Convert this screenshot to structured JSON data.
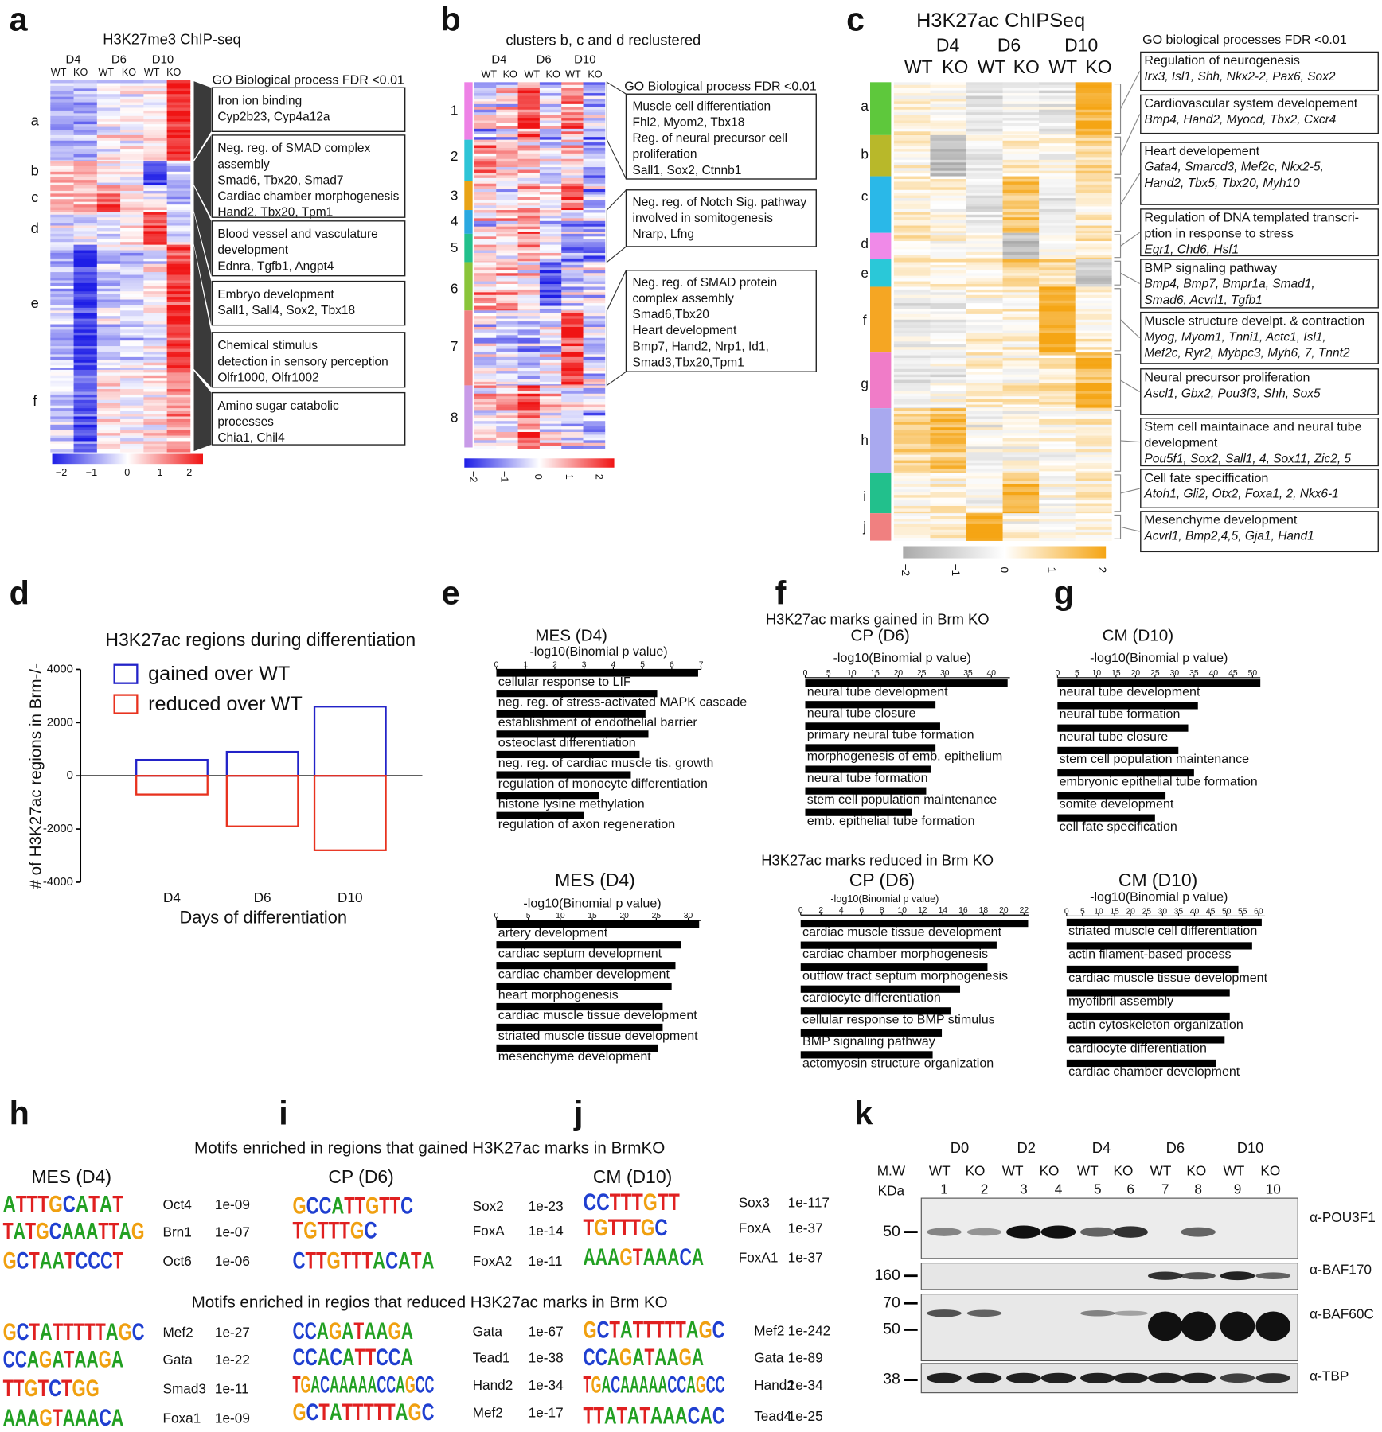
{
  "labels": [
    "a",
    "b",
    "c",
    "d",
    "e",
    "f",
    "g",
    "h",
    "i",
    "j",
    "k"
  ],
  "heatmap_a": {
    "title": "H3K27me3 ChIP-seq",
    "days": [
      "D4",
      "D6",
      "D10"
    ],
    "genotypes": [
      "WT",
      "KO",
      "WT",
      "KO",
      "WT",
      "KO"
    ],
    "clusters": [
      "a",
      "b",
      "c",
      "d",
      "e",
      "f"
    ],
    "go_header": "GO Biological process FDR <0.01",
    "go_boxes": [
      [
        "Iron ion binding",
        "Cyp2b23, Cyp4a12a"
      ],
      [
        "Neg. reg. of SMAD complex",
        "assembly",
        "Smad6, Tbx20, Smad7",
        "Cardiac chamber morphogenesis",
        "Hand2, Tbx20, Tpm1"
      ],
      [
        "Blood vessel  and vasculature",
        "development",
        "Ednra, Tgfb1, Angpt4"
      ],
      [
        "Embryo development",
        "Sall1, Sall4, Sox2, Tbx18"
      ],
      [
        "Chemical stimulus",
        "detection in sensory perception",
        "Olfr1000, Olfr1002"
      ],
      [
        "Amino sugar catabolic",
        "processes",
        "Chia1, Chil4"
      ]
    ],
    "colorbar": [
      "−2",
      "−1",
      "0",
      "1",
      "2"
    ]
  },
  "heatmap_b": {
    "title": "clusters b, c and d reclustered",
    "days": [
      "D4",
      "D6",
      "D10"
    ],
    "genotypes": [
      "WT",
      "KO",
      "WT",
      "KO",
      "WT",
      "KO"
    ],
    "clusters": [
      "1",
      "2",
      "3",
      "4",
      "5",
      "6",
      "7",
      "8"
    ],
    "go_header": "GO Biological process FDR <0.01",
    "go_boxes": [
      [
        "Muscle cell differentiation",
        "Fhl2, Myom2, Tbx18",
        "Reg. of neural precursor cell",
        "proliferation",
        "Sall1, Sox2, Ctnnb1"
      ],
      [
        "Neg. reg. of Notch Sig. pathway",
        "involved in somitogenesis",
        "Nrarp, Lfng"
      ],
      [
        "Neg. reg. of SMAD protein",
        "complex assembly",
        "Smad6,Tbx20",
        "Heart development",
        "Bmp7, Hand2, Nrp1, Id1,",
        "Smad3,Tbx20,Tpm1"
      ]
    ],
    "colorbar": [
      "−2",
      "−1",
      "0",
      "1",
      "2"
    ]
  },
  "heatmap_c": {
    "title": "H3K27ac ChIPSeq",
    "days": [
      "D4",
      "D6",
      "D10"
    ],
    "genotypes": [
      "WT",
      "KO",
      "WT",
      "KO",
      "WT",
      "KO"
    ],
    "clusters": [
      "a",
      "b",
      "c",
      "d",
      "e",
      "f",
      "g",
      "h",
      "i",
      "j"
    ],
    "go_header": "GO biological processes FDR <0.01",
    "go_boxes": [
      {
        "title": [
          "Regulation of neurogenesis"
        ],
        "genes": [
          "Irx3, Isl1, Shh, Nkx2-2, Pax6, Sox2"
        ]
      },
      {
        "title": [
          "Cardiovascular system developement"
        ],
        "genes": [
          "Bmp4,  Hand2, Myocd, Tbx2, Cxcr4"
        ]
      },
      {
        "title": [
          "Heart developement"
        ],
        "genes": [
          "Gata4, Smarcd3, Mef2c, Nkx2-5,",
          "Hand2, Tbx5, Tbx20, Myh10"
        ]
      },
      {
        "title": [
          "Regulation of DNA templated transcri-",
          "ption in response to stress"
        ],
        "genes": [
          "Egr1, Chd6, Hsf1"
        ]
      },
      {
        "title": [
          "BMP signaling pathway"
        ],
        "genes": [
          "Bmp4, Bmp7,  Bmpr1a, Smad1,",
          "Smad6, Acvrl1, Tgfb1"
        ]
      },
      {
        "title": [
          "Muscle structure develpt. & contraction"
        ],
        "genes": [
          "Myog, Myom1, Tnni1, Actc1, Isl1,",
          "Mef2c,  Ryr2, Mybpc3, Myh6, 7, Tnnt2"
        ]
      },
      {
        "title": [
          "Neural precursor proliferation"
        ],
        "genes": [
          "Ascl1, Gbx2, Pou3f3, Shh, Sox5"
        ]
      },
      {
        "title": [
          "Stem cell maintainace and neural tube",
          "development"
        ],
        "genes": [
          "Pou5f1, Sox2, Sall1, 4, Sox11, Zic2, 5"
        ]
      },
      {
        "title": [
          "Cell fate speciffication"
        ],
        "genes": [
          "Atoh1, Gli2, Otx2, Foxa1, 2, Nkx6-1"
        ]
      },
      {
        "title": [
          "Mesenchyme development"
        ],
        "genes": [
          "Acvrl1, Bmp2,4,5, Gja1, Hand1"
        ]
      }
    ],
    "colorbar": [
      "−2",
      "−1",
      "0",
      "1",
      "2"
    ]
  },
  "go_headers": {
    "gained": "H3K27ac marks gained in Brm KO",
    "reduced": "H3K27ac marks reduced in Brm KO"
  },
  "chart_data": [
    {
      "type": "bar",
      "title": "H3K27ac regions during differentiation",
      "categories": [
        "D4",
        "D6",
        "D10"
      ],
      "series": [
        {
          "name": "gained over WT",
          "color": "#2323c8",
          "values": [
            600,
            900,
            2600
          ]
        },
        {
          "name": "reduced over WT",
          "color": "#e8321e",
          "values": [
            -700,
            -1900,
            -2800
          ]
        }
      ],
      "ylim": [
        -4000,
        4000
      ],
      "yticks": [
        -4000,
        -2000,
        0,
        2000,
        4000
      ],
      "xlabel": "Days of differentiation",
      "ylabel": "# of H3K27ac regions in Brm-/-",
      "legend": "upper left"
    },
    {
      "type": "barh",
      "title": "MES (D4)",
      "xlabel": "-log10(Binomial p value)",
      "color": "#000000",
      "xlim": [
        0,
        7
      ],
      "xticks": [
        0,
        1,
        2,
        3,
        4,
        5,
        6,
        7
      ],
      "categories": [
        "cellular response to LIF",
        "neg. reg. of stress-activated MAPK cascade",
        "establishment of endothelial barrier",
        "osteoclast differentiation",
        "neg. reg. of cardiac muscle tis. growth",
        "regulation of monocyte differentiation",
        "histone lysine methylation",
        "regulation of axon regeneration"
      ],
      "values": [
        6.9,
        5.5,
        5.1,
        5.2,
        4.9,
        4.6,
        3.5,
        3.0
      ]
    },
    {
      "type": "barh",
      "title": "CP (D6)",
      "xlabel": "-log10(Binomial p value)",
      "color": "#000000",
      "xlim": [
        0,
        44
      ],
      "xticks": [
        0,
        5,
        10,
        15,
        20,
        25,
        30,
        35,
        40
      ],
      "categories": [
        "neural tube development",
        "neural tube closure",
        "primary neural tube formation",
        "morphogenesis of emb. epithelium",
        "neural tube formation",
        "stem cell population maintenance",
        "emb. epithelial tube formation"
      ],
      "values": [
        43.5,
        28,
        29,
        28,
        27,
        26,
        23
      ]
    },
    {
      "type": "barh",
      "title": "CM (D10)",
      "xlabel": "-log10(Binomial p value)",
      "color": "#000000",
      "xlim": [
        0,
        52
      ],
      "xticks": [
        0,
        5,
        10,
        15,
        20,
        25,
        30,
        35,
        40,
        45,
        50
      ],
      "categories": [
        "neural tube development",
        "neural tube formation",
        "neural tube closure",
        "stem cell population maintenance",
        "embryonic epithelial tube formation",
        "somite development",
        "cell fate specification"
      ],
      "values": [
        52,
        36,
        33.5,
        31,
        35,
        27.7,
        25
      ]
    },
    {
      "type": "barh",
      "title": "MES (D4)",
      "xlabel": "-log10(Binomial p value)",
      "color": "#000000",
      "xlim": [
        0,
        32
      ],
      "xticks": [
        0,
        5,
        10,
        15,
        20,
        25,
        30
      ],
      "categories": [
        "artery development",
        "cardiac septum development",
        "cardiac chamber development",
        "heart morphogenesis",
        "cardiac muscle tissue development",
        "striated muscle tissue development",
        "mesenchyme development"
      ],
      "values": [
        31.7,
        28.9,
        28,
        27.4,
        26,
        26,
        25.3
      ]
    },
    {
      "type": "barh",
      "title": "CP (D6)",
      "xlabel": "-log10(Binomial p value)",
      "color": "#000000",
      "xlim": [
        0,
        22.5
      ],
      "xticks": [
        0,
        2,
        4,
        6,
        8,
        10,
        12,
        14,
        16,
        18,
        20,
        22
      ],
      "categories": [
        "cardiac muscle tissue development",
        "cardiac chamber morphogenesis",
        "outflow tract septum morphogenesis",
        "cardiocyte differentiation",
        "cellular response to BMP stimulus",
        "BMP signaling pathway",
        "actomyosin structure organization"
      ],
      "values": [
        22.4,
        19.3,
        18.4,
        15.7,
        14.8,
        13.9,
        13
      ]
    },
    {
      "type": "barh",
      "title": "CM (D10)",
      "xlabel": "-log10(Binomial p value)",
      "color": "#000000",
      "xlim": [
        0,
        62
      ],
      "xticks": [
        0,
        5,
        10,
        15,
        20,
        25,
        30,
        35,
        40,
        45,
        50,
        55,
        60
      ],
      "categories": [
        "striated muscle cell differentiation",
        "actin filament-based process",
        "cardiac muscle tissue development",
        "myofibril assembly",
        "actin cytoskeleton organization",
        "cardiocyte differentiation",
        "cardiac chamber development"
      ],
      "values": [
        61,
        58,
        53.7,
        51,
        51,
        49.4,
        46.6
      ]
    }
  ],
  "motifs": {
    "gained_header": "Motifs enriched in regions that gained H3K27ac marks in BrmKO",
    "reduced_header": "Motifs enriched in regios that reduced H3K27ac marks in Brm KO",
    "stages": [
      "MES (D4)",
      "CP (D6)",
      "CM (D10)"
    ],
    "gained": [
      [
        {
          "logo": "ATTTGCATAT",
          "name": "Oct4",
          "p": "1e-09"
        },
        {
          "logo": "TATGCAAATTAG",
          "name": "Brn1",
          "p": "1e-07"
        },
        {
          "logo": "GCTAATCCCT",
          "name": "Oct6",
          "p": "1e-06"
        }
      ],
      [
        {
          "logo": "GCCATTGTTC",
          "name": "Sox2",
          "p": "1e-23"
        },
        {
          "logo": "TGTTTGC",
          "name": "FoxA",
          "p": "1e-14"
        },
        {
          "logo": "CTTGTTTACATA",
          "name": "FoxA2",
          "p": "1e-11"
        }
      ],
      [
        {
          "logo": "CCTTTGTT",
          "name": "Sox3",
          "p": "1e-117"
        },
        {
          "logo": "TGTTTGC",
          "name": "FoxA",
          "p": "1e-37"
        },
        {
          "logo": "AAAGTAAACA",
          "name": "FoxA1",
          "p": "1e-37"
        }
      ]
    ],
    "reduced": [
      [
        {
          "logo": "GCTATTTTTAGC",
          "name": "Mef2",
          "p": "1e-27"
        },
        {
          "logo": "CCAGATAAGA",
          "name": "Gata",
          "p": "1e-22"
        },
        {
          "logo": "TTGTCTGG",
          "name": "Smad3",
          "p": "1e-11"
        },
        {
          "logo": "AAAGTAAACA",
          "name": "Foxa1",
          "p": "1e-09"
        }
      ],
      [
        {
          "logo": "CCAGATAAGA",
          "name": "Gata",
          "p": "1e-67"
        },
        {
          "logo": "CCACATTCCA",
          "name": "Tead1",
          "p": "1e-38"
        },
        {
          "logo": "TGACAAAAACCAGCC",
          "name": "Hand2",
          "p": "1e-34"
        },
        {
          "logo": "GCTATTTTTAGC",
          "name": "Mef2",
          "p": "1e-17"
        }
      ],
      [
        {
          "logo": "GCTATTTTTAGC",
          "name": "Mef2",
          "p": "1e-242"
        },
        {
          "logo": "CCAGATAAGA",
          "name": "Gata",
          "p": "1e-89"
        },
        {
          "logo": "TGACAAAAACCAGCC",
          "name": "Hand2",
          "p": "1e-34"
        },
        {
          "logo": "TTATATAAACAC",
          "name": "Tead4",
          "p": "1e-25"
        }
      ]
    ]
  },
  "western": {
    "days": [
      "D0",
      "D2",
      "D4",
      "D6",
      "D10"
    ],
    "mw_header": [
      "M.W",
      "KDa"
    ],
    "genotypes": [
      "WT",
      "KO",
      "WT",
      "KO",
      "WT",
      "KO",
      "WT",
      "KO",
      "WT",
      "KO"
    ],
    "lanes": [
      1,
      2,
      3,
      4,
      5,
      6,
      7,
      8,
      9,
      10
    ],
    "markers": [
      50,
      160,
      70,
      50,
      38
    ],
    "antibodies": [
      "α-POU3F1",
      "α-BAF170",
      "α-BAF60C",
      "α-TBP"
    ]
  }
}
